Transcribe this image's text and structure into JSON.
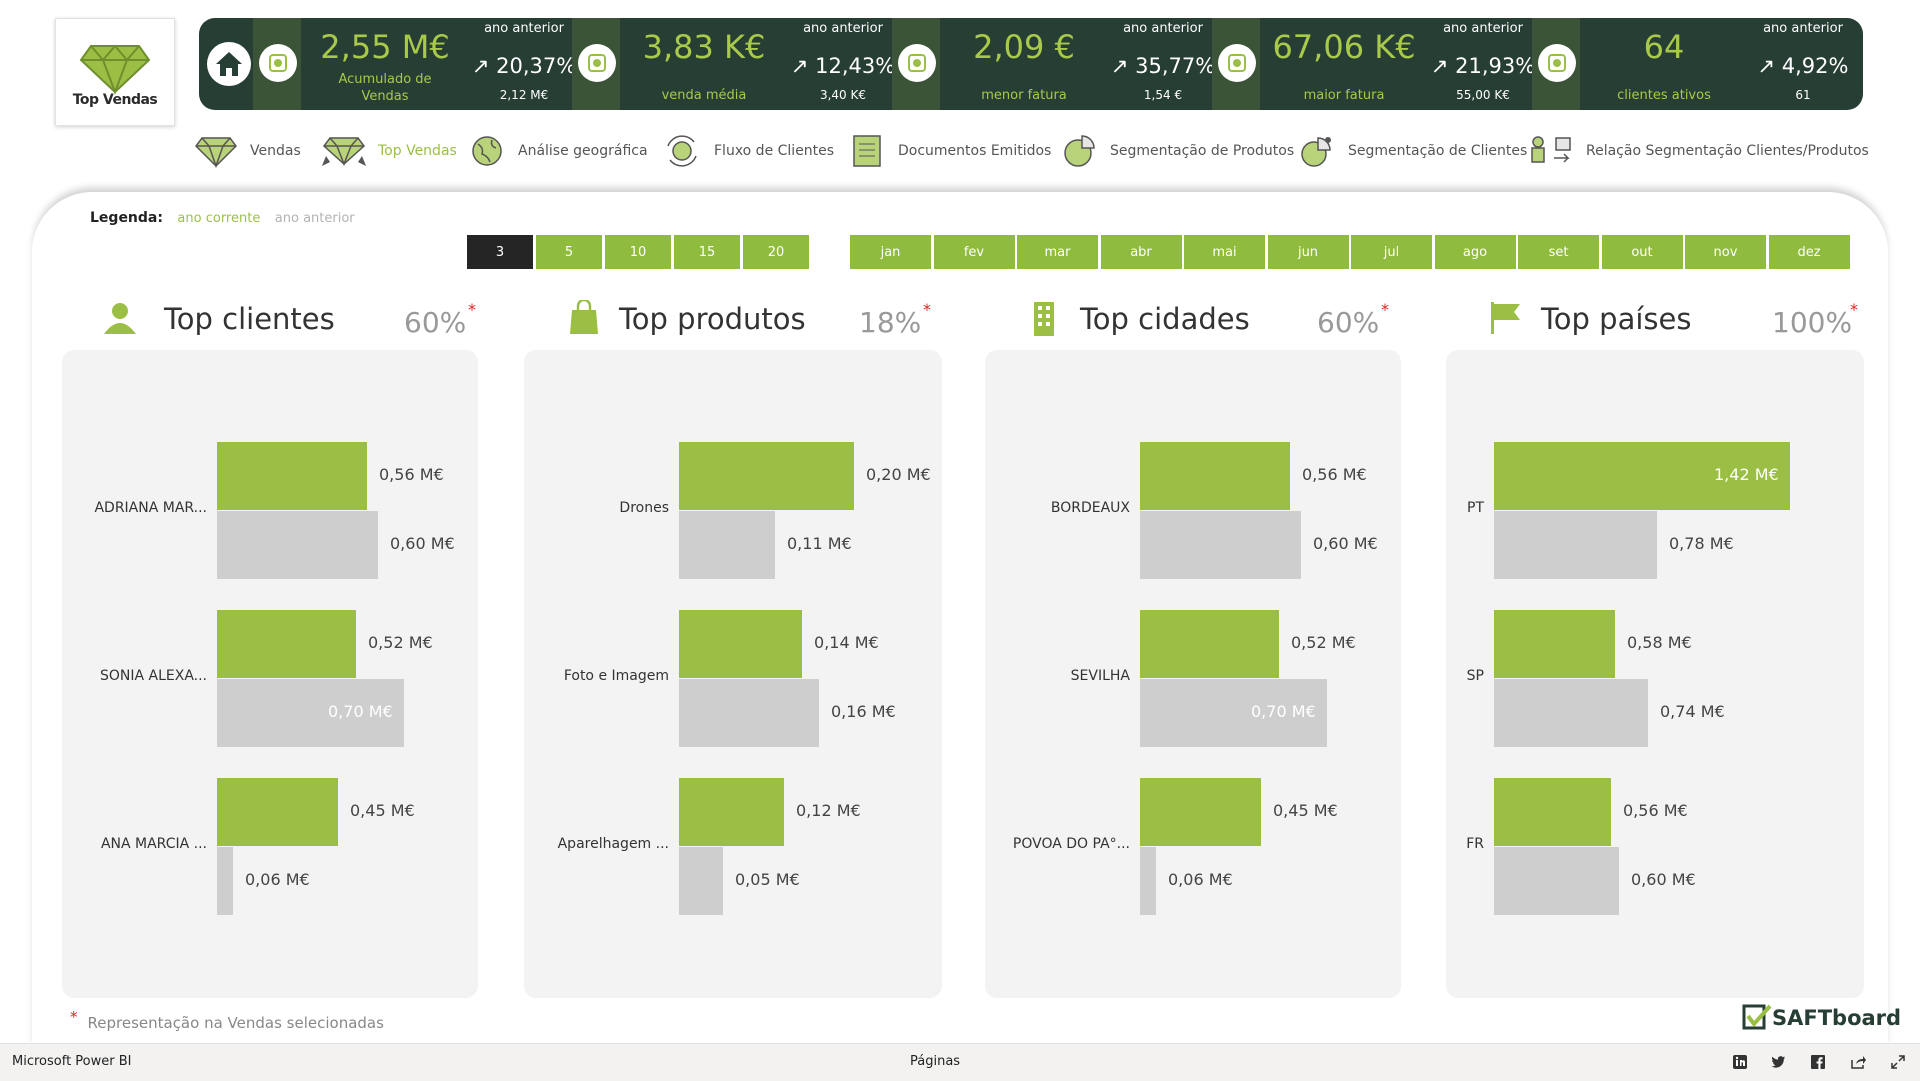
{
  "logo": {
    "label": "Top Vendas"
  },
  "kpis": [
    {
      "value": "2,55 M€",
      "caption": "Acumulado de Vendas",
      "prev_label": "ano anterior",
      "pct": "↗ 20,37%",
      "prev_value": "2,12 M€"
    },
    {
      "value": "3,83 K€",
      "caption": "venda média",
      "prev_label": "ano anterior",
      "pct": "↗ 12,43%",
      "prev_value": "3,40 K€"
    },
    {
      "value": "2,09 €",
      "caption": "menor fatura",
      "prev_label": "ano anterior",
      "pct": "↗ 35,77%",
      "prev_value": "1,54 €"
    },
    {
      "value": "67,06 K€",
      "caption": "maior fatura",
      "prev_label": "ano anterior",
      "pct": "↗ 21,93%",
      "prev_value": "55,00 K€"
    },
    {
      "value": "64",
      "caption": "clientes ativos",
      "prev_label": "ano anterior",
      "pct": "↗ 4,92%",
      "prev_value": "61"
    }
  ],
  "nav": [
    {
      "label": "Vendas",
      "icon": "diamond-icon"
    },
    {
      "label": "Top Vendas",
      "icon": "diamond-ribbon-icon",
      "active": true
    },
    {
      "label": "Análise geográfica",
      "icon": "globe-icon"
    },
    {
      "label": "Fluxo de Clientes",
      "icon": "customer-flow-icon"
    },
    {
      "label": "Documentos Emitidos",
      "icon": "document-icon"
    },
    {
      "label": "Segmentação de Produtos",
      "icon": "pie-icon"
    },
    {
      "label": "Segmentação de Clientes",
      "icon": "pie-person-icon"
    },
    {
      "label": "Relação Segmentação Clientes/Produtos",
      "icon": "relation-icon"
    }
  ],
  "legend": {
    "title": "Legenda:",
    "current": "ano corrente",
    "previous": "ano anterior"
  },
  "topn": {
    "options": [
      "3",
      "5",
      "10",
      "15",
      "20"
    ],
    "selected": "3"
  },
  "months": [
    "jan",
    "fev",
    "mar",
    "abr",
    "mai",
    "jun",
    "jul",
    "ago",
    "set",
    "out",
    "nov",
    "dez"
  ],
  "colors": {
    "accent": "#9bbf45",
    "dark": "#263e34",
    "previous": "#cecece"
  },
  "sections": [
    {
      "title": "Top clientes",
      "pct": "60%",
      "star": "*",
      "icon": "person-icon"
    },
    {
      "title": "Top produtos",
      "pct": "18%",
      "star": "*",
      "icon": "shopping-bag-icon"
    },
    {
      "title": "Top cidades",
      "pct": "60%",
      "star": "*",
      "icon": "building-icon"
    },
    {
      "title": "Top países",
      "pct": "100%",
      "star": "*",
      "icon": "flag-icon"
    }
  ],
  "chart_data": [
    {
      "type": "bar",
      "orientation": "horizontal",
      "categories": [
        "ADRIANA MAR...",
        "SONIA ALEXA...",
        "ANA MARCIA ..."
      ],
      "series": [
        {
          "name": "ano corrente",
          "values": [
            0.56,
            0.52,
            0.45
          ],
          "labels": [
            "0,56 M€",
            "0,52 M€",
            "0,45 M€"
          ]
        },
        {
          "name": "ano anterior",
          "values": [
            0.6,
            0.7,
            0.06
          ],
          "labels": [
            "0,60 M€",
            "0,70 M€",
            "0,06 M€"
          ]
        }
      ]
    },
    {
      "type": "bar",
      "orientation": "horizontal",
      "categories": [
        "Drones",
        "Foto e Imagem",
        "Aparelhagem ..."
      ],
      "series": [
        {
          "name": "ano corrente",
          "values": [
            0.2,
            0.14,
            0.12
          ],
          "labels": [
            "0,20 M€",
            "0,14 M€",
            "0,12 M€"
          ]
        },
        {
          "name": "ano anterior",
          "values": [
            0.11,
            0.16,
            0.05
          ],
          "labels": [
            "0,11 M€",
            "0,16 M€",
            "0,05 M€"
          ]
        }
      ]
    },
    {
      "type": "bar",
      "orientation": "horizontal",
      "categories": [
        "BORDEAUX",
        "SEVILHA",
        "POVOA DO PA°..."
      ],
      "series": [
        {
          "name": "ano corrente",
          "values": [
            0.56,
            0.52,
            0.45
          ],
          "labels": [
            "0,56 M€",
            "0,52 M€",
            "0,45 M€"
          ]
        },
        {
          "name": "ano anterior",
          "values": [
            0.6,
            0.7,
            0.06
          ],
          "labels": [
            "0,60 M€",
            "0,70 M€",
            "0,06 M€"
          ]
        }
      ]
    },
    {
      "type": "bar",
      "orientation": "horizontal",
      "categories": [
        "PT",
        "SP",
        "FR"
      ],
      "series": [
        {
          "name": "ano corrente",
          "values": [
            1.42,
            0.58,
            0.56
          ],
          "labels": [
            "1,42 M€",
            "0,58 M€",
            "0,56 M€"
          ]
        },
        {
          "name": "ano anterior",
          "values": [
            0.78,
            0.74,
            0.6
          ],
          "labels": [
            "0,78 M€",
            "0,74 M€",
            "0,60 M€"
          ]
        }
      ]
    }
  ],
  "footnote": {
    "star": "*",
    "text": "Representação na Vendas selecionadas"
  },
  "brand": {
    "name": "SAFTboard"
  },
  "statusbar": {
    "app": "Microsoft Power BI",
    "pages": "Páginas"
  }
}
